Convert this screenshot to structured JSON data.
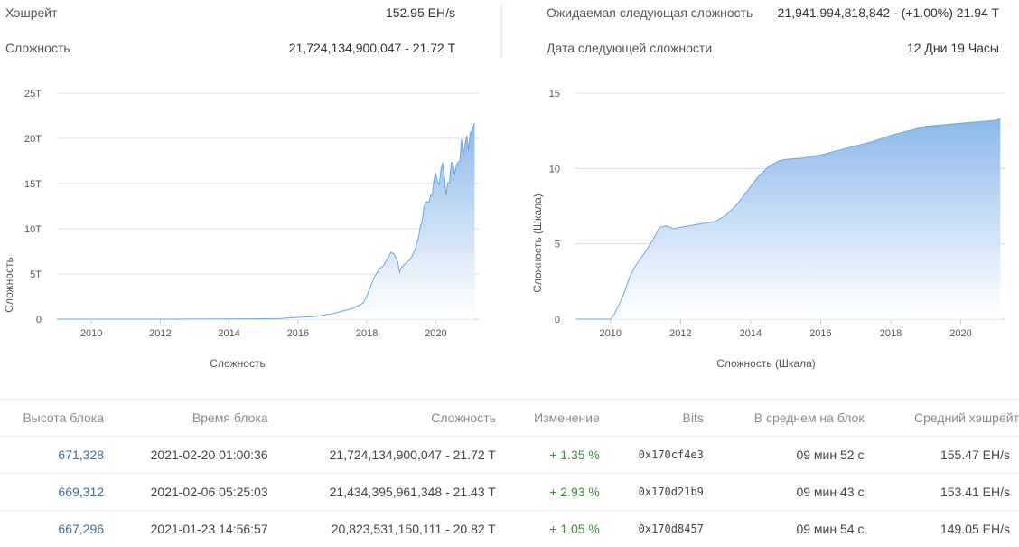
{
  "stats": {
    "hashrate_label": "Хэшрейт",
    "hashrate_value": "152.95 EH/s",
    "difficulty_label": "Сложность",
    "difficulty_value": "21,724,134,900,047 - 21.72 T",
    "expected_label": "Ожидаемая следующая сложность",
    "expected_value": "21,941,994,818,842 - (+1.00%) 21.94 T",
    "next_date_label": "Дата следующей сложности",
    "next_date_value": "12 Дни 19 Часы"
  },
  "chart_data": [
    {
      "type": "area",
      "xlabel": "Сложность",
      "ylabel": "Сложность",
      "xlim": [
        2009.0,
        2021.25
      ],
      "ylim": [
        0,
        25
      ],
      "xticks": [
        "2010",
        "2012",
        "2014",
        "2016",
        "2018",
        "2020"
      ],
      "yticks": [
        "0",
        "5T",
        "10T",
        "15T",
        "20T",
        "25T"
      ],
      "series": [
        {
          "x": [
            2009.0,
            2010.0,
            2011.0,
            2012.0,
            2013.0,
            2014.0,
            2015.0,
            2015.5,
            2016.0,
            2016.5,
            2017.0,
            2017.3,
            2017.6,
            2017.9,
            2018.0,
            2018.1,
            2018.2,
            2018.35,
            2018.5,
            2018.6,
            2018.7,
            2018.8,
            2018.9,
            2018.95,
            2019.0,
            2019.1,
            2019.2,
            2019.3,
            2019.4,
            2019.5,
            2019.55,
            2019.6,
            2019.65,
            2019.7,
            2019.75,
            2019.8,
            2019.85,
            2019.9,
            2019.95,
            2020.0,
            2020.05,
            2020.1,
            2020.15,
            2020.2,
            2020.25,
            2020.3,
            2020.35,
            2020.4,
            2020.45,
            2020.5,
            2020.55,
            2020.6,
            2020.65,
            2020.7,
            2020.75,
            2020.8,
            2020.85,
            2020.9,
            2020.95,
            2021.0,
            2021.05,
            2021.1,
            2021.13
          ],
          "values": [
            0,
            0,
            0,
            0,
            0.01,
            0.02,
            0.05,
            0.08,
            0.2,
            0.3,
            0.6,
            0.9,
            1.2,
            1.8,
            2.6,
            3.5,
            4.5,
            5.5,
            6.0,
            6.7,
            7.4,
            7.2,
            6.3,
            5.2,
            5.7,
            6.1,
            6.4,
            6.9,
            7.7,
            9.0,
            10.2,
            10.7,
            12.2,
            12.9,
            13.0,
            12.9,
            13.7,
            13.7,
            15.5,
            16.1,
            15.3,
            14.8,
            16.5,
            17.3,
            15.8,
            13.7,
            15.1,
            15.1,
            17.3,
            17.3,
            16.0,
            17.0,
            17.4,
            17.4,
            19.9,
            18.1,
            19.3,
            20.3,
            18.7,
            20.6,
            20.8,
            21.4,
            21.72
          ]
        }
      ]
    },
    {
      "type": "area",
      "xlabel": "Сложность (Шкала)",
      "ylabel": "Сложность (Шкала)",
      "xlim": [
        2009.0,
        2021.25
      ],
      "ylim": [
        0,
        15
      ],
      "xticks": [
        "2010",
        "2012",
        "2014",
        "2016",
        "2018",
        "2020"
      ],
      "yticks": [
        "0",
        "5",
        "10",
        "15"
      ],
      "series": [
        {
          "x": [
            2009.0,
            2009.5,
            2010.0,
            2010.1,
            2010.25,
            2010.4,
            2010.55,
            2010.7,
            2010.85,
            2011.0,
            2011.2,
            2011.4,
            2011.6,
            2011.8,
            2012.0,
            2012.5,
            2013.0,
            2013.3,
            2013.6,
            2013.9,
            2014.2,
            2014.5,
            2014.8,
            2015.0,
            2015.5,
            2016.0,
            2016.5,
            2017.0,
            2017.5,
            2018.0,
            2018.5,
            2019.0,
            2019.5,
            2020.0,
            2020.5,
            2021.0,
            2021.13
          ],
          "values": [
            0,
            0,
            0,
            0.3,
            1.0,
            1.8,
            2.8,
            3.5,
            4.0,
            4.5,
            5.2,
            6.1,
            6.2,
            6.0,
            6.1,
            6.3,
            6.5,
            6.9,
            7.6,
            8.5,
            9.4,
            10.1,
            10.5,
            10.6,
            10.7,
            10.9,
            11.2,
            11.5,
            11.8,
            12.2,
            12.5,
            12.8,
            12.9,
            13.0,
            13.1,
            13.2,
            13.33
          ]
        }
      ]
    }
  ],
  "table": {
    "headers": [
      "Высота блока",
      "Время блока",
      "Сложность",
      "Изменение",
      "Bits",
      "В среднем на блок",
      "Средний хэшрейт"
    ],
    "rows": [
      [
        "671,328",
        "2021-02-20 01:00:36",
        "21,724,134,900,047 - 21.72 T",
        "+ 1.35 %",
        "0x170cf4e3",
        "09 мин 52 с",
        "155.47 EH/s"
      ],
      [
        "669,312",
        "2021-02-06 05:25:03",
        "21,434,395,961,348 - 21.43 T",
        "+ 2.93 %",
        "0x170d21b9",
        "09 мин 43 с",
        "153.41 EH/s"
      ],
      [
        "667,296",
        "2021-01-23 14:56:57",
        "20,823,531,150,111 - 20.82 T",
        "+ 1.05 %",
        "0x170d8457",
        "09 мин 54 с",
        "149.05 EH/s"
      ]
    ]
  },
  "colors": {
    "area_top": "#8ab8ea",
    "area_bottom": "#ffffff",
    "line": "#6da4df",
    "link": "#3c6e96",
    "positive": "#3a8d3a"
  }
}
